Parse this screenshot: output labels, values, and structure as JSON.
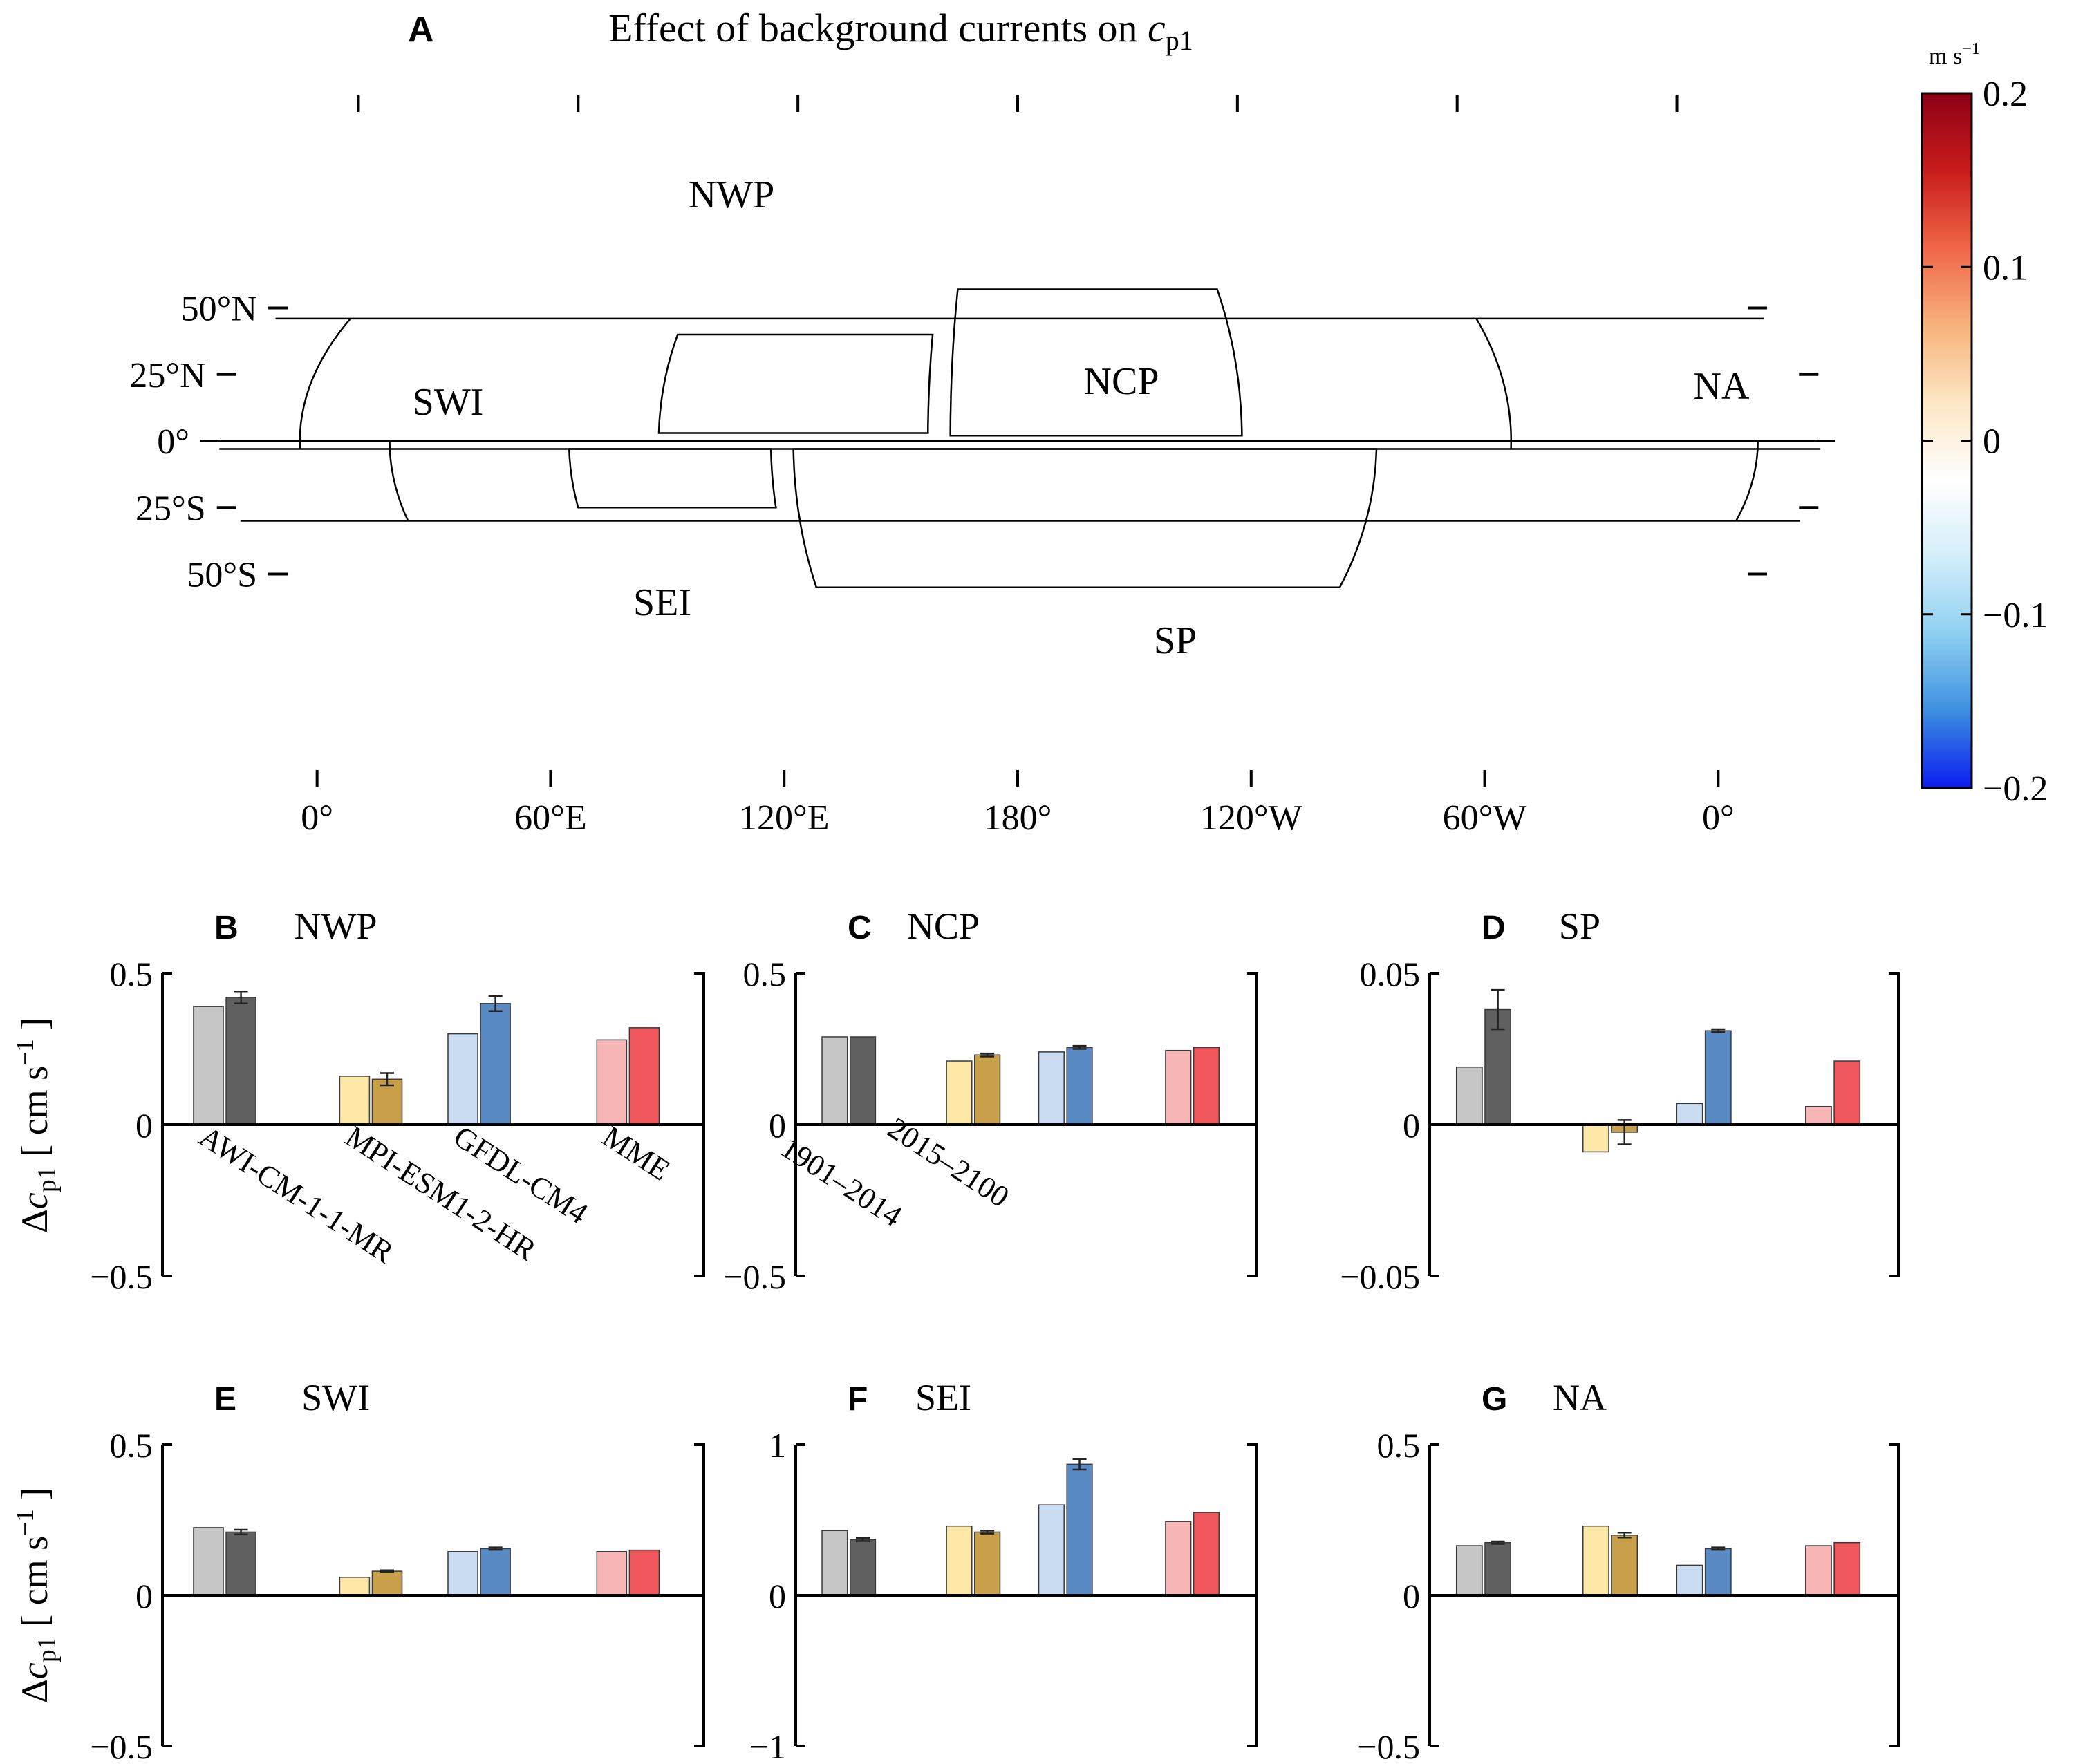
{
  "panel_a": {
    "letter": "A",
    "title_prefix": "Effect of background currents on ",
    "title_var": "c",
    "title_sub": "p1",
    "lat_labels": [
      "50°N",
      "25°N",
      "0°",
      "25°S",
      "50°S"
    ],
    "lon_labels": [
      "0°",
      "60°E",
      "120°E",
      "180°",
      "120°W",
      "60°W",
      "0°"
    ],
    "regions": [
      "NWP",
      "NCP",
      "NA",
      "SWI",
      "SEI",
      "SP"
    ],
    "colorbar": {
      "unit_main": "m s",
      "unit_exp": "−1",
      "ticks": [
        "0.2",
        "0.1",
        "0",
        "−0.1",
        "−0.2"
      ],
      "vmin": -0.2,
      "vmax": 0.2,
      "colormap": [
        "#0b1cf0",
        "#3d8fe0",
        "#8ed0f2",
        "#d4eefa",
        "#ffffff",
        "#fde6c4",
        "#f8b17a",
        "#ef6646",
        "#c81c1c",
        "#8e0016"
      ]
    },
    "land_color": "#c8c8c8"
  },
  "y_axis_label": {
    "delta": "Δ",
    "var": "c",
    "sub": "p1",
    "unit_main": " [ cm s",
    "unit_exp": "−1",
    "unit_end": " ]"
  },
  "models": [
    "AWI-CM-1-1-MR",
    "MPI-ESM1-2-HR",
    "GFDL-CM4",
    "MME"
  ],
  "period_labels": [
    "1901–2014",
    "2015–2100"
  ],
  "model_colors": {
    "light": [
      "#c6c6c6",
      "#fde8a8",
      "#c9dcf2",
      "#f7b5b5"
    ],
    "dark": [
      "#606060",
      "#c8a04a",
      "#5a8ac4",
      "#f0575d"
    ]
  },
  "chart_data": [
    {
      "type": "bar",
      "letter": "B",
      "title": "NWP",
      "categories": [
        "AWI-CM-1-1-MR",
        "MPI-ESM1-2-HR",
        "GFDL-CM4",
        "MME"
      ],
      "series": [
        {
          "values": [
            0.39,
            0.16,
            0.3,
            0.28
          ],
          "errors": [
            0,
            0,
            0,
            0
          ]
        },
        {
          "values": [
            0.42,
            0.15,
            0.4,
            0.32
          ],
          "errors": [
            0.02,
            0.02,
            0.025,
            0
          ]
        }
      ],
      "ylim": [
        -0.5,
        0.5
      ],
      "yticks": [
        "0.5",
        "0",
        "−0.5"
      ],
      "ytick_values": [
        0.5,
        0,
        -0.5
      ]
    },
    {
      "type": "bar",
      "letter": "C",
      "title": "NCP",
      "categories": [
        "AWI-CM-1-1-MR",
        "MPI-ESM1-2-HR",
        "GFDL-CM4",
        "MME"
      ],
      "series": [
        {
          "values": [
            0.29,
            0.21,
            0.24,
            0.245
          ],
          "errors": [
            0,
            0,
            0,
            0
          ]
        },
        {
          "values": [
            0.29,
            0.23,
            0.255,
            0.255
          ],
          "errors": [
            0,
            0.005,
            0.005,
            0
          ]
        }
      ],
      "ylim": [
        -0.5,
        0.5
      ],
      "yticks": [
        "0.5",
        "0",
        "−0.5"
      ],
      "ytick_values": [
        0.5,
        0,
        -0.5
      ]
    },
    {
      "type": "bar",
      "letter": "D",
      "title": "SP",
      "categories": [
        "AWI-CM-1-1-MR",
        "MPI-ESM1-2-HR",
        "GFDL-CM4",
        "MME"
      ],
      "series": [
        {
          "values": [
            0.019,
            -0.009,
            0.007,
            0.006
          ],
          "errors": [
            0,
            0,
            0,
            0
          ]
        },
        {
          "values": [
            0.038,
            -0.0025,
            0.031,
            0.021
          ],
          "errors": [
            0.0065,
            0.004,
            0.0005,
            0
          ]
        }
      ],
      "ylim": [
        -0.05,
        0.05
      ],
      "yticks": [
        "0.05",
        "0",
        "−0.05"
      ],
      "ytick_values": [
        0.05,
        0,
        -0.05
      ]
    },
    {
      "type": "bar",
      "letter": "E",
      "title": "SWI",
      "categories": [
        "AWI-CM-1-1-MR",
        "MPI-ESM1-2-HR",
        "GFDL-CM4",
        "MME"
      ],
      "series": [
        {
          "values": [
            0.225,
            0.06,
            0.145,
            0.145
          ],
          "errors": [
            0,
            0,
            0,
            0
          ]
        },
        {
          "values": [
            0.21,
            0.08,
            0.155,
            0.15
          ],
          "errors": [
            0.008,
            0.003,
            0.004,
            0
          ]
        }
      ],
      "ylim": [
        -0.5,
        0.5
      ],
      "yticks": [
        "0.5",
        "0",
        "−0.5"
      ],
      "ytick_values": [
        0.5,
        0,
        -0.5
      ]
    },
    {
      "type": "bar",
      "letter": "F",
      "title": "SEI",
      "categories": [
        "AWI-CM-1-1-MR",
        "MPI-ESM1-2-HR",
        "GFDL-CM4",
        "MME"
      ],
      "series": [
        {
          "values": [
            0.43,
            0.46,
            0.6,
            0.49
          ],
          "errors": [
            0,
            0,
            0,
            0
          ]
        },
        {
          "values": [
            0.37,
            0.42,
            0.87,
            0.55
          ],
          "errors": [
            0.01,
            0.01,
            0.035,
            0
          ]
        }
      ],
      "ylim": [
        -1,
        1
      ],
      "yticks": [
        "1",
        "0",
        "−1"
      ],
      "ytick_values": [
        1,
        0,
        -1
      ]
    },
    {
      "type": "bar",
      "letter": "G",
      "title": "NA",
      "categories": [
        "AWI-CM-1-1-MR",
        "MPI-ESM1-2-HR",
        "GFDL-CM4",
        "MME"
      ],
      "series": [
        {
          "values": [
            0.165,
            0.23,
            0.1,
            0.165
          ],
          "errors": [
            0,
            0,
            0,
            0
          ]
        },
        {
          "values": [
            0.175,
            0.2,
            0.155,
            0.175
          ],
          "errors": [
            0.004,
            0.008,
            0.004,
            0
          ]
        }
      ],
      "ylim": [
        -0.5,
        0.5
      ],
      "yticks": [
        "0.5",
        "0",
        "−0.5"
      ],
      "ytick_values": [
        0.5,
        0,
        -0.5
      ]
    }
  ]
}
